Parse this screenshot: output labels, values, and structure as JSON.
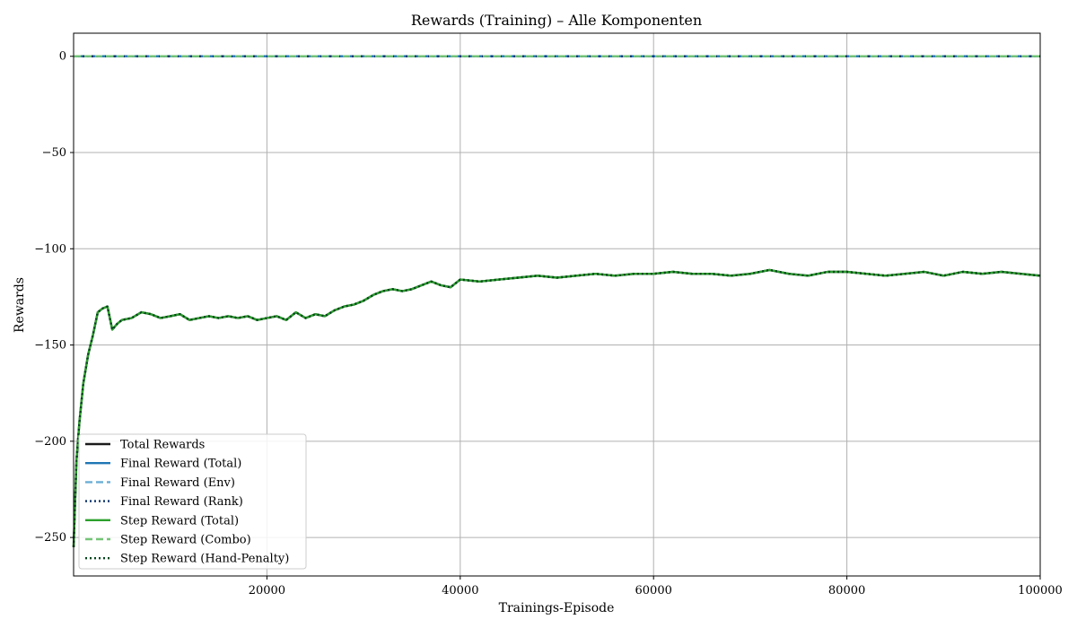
{
  "chart_data": {
    "type": "line",
    "title": "Rewards (Training) – Alle Komponenten",
    "xlabel": "Trainings-Episode",
    "ylabel": "Rewards",
    "xlim": [
      0,
      100000
    ],
    "ylim": [
      -270,
      12
    ],
    "x_ticks": [
      20000,
      40000,
      60000,
      80000,
      100000
    ],
    "x_tick_labels": [
      "20000",
      "40000",
      "60000",
      "80000",
      "100000"
    ],
    "y_ticks": [
      0,
      -50,
      -100,
      -150,
      -200,
      -250
    ],
    "y_tick_labels": [
      "0",
      "−50",
      "−100",
      "−150",
      "−200",
      "−250"
    ],
    "grid": true,
    "legend_position": "lower-left",
    "colors": {
      "grid": "#b0b0b0",
      "axes": "#000000",
      "total": "#1a1a1a",
      "final_total": "#1f77b4",
      "final_env": "#6baed6",
      "final_rank": "#08306b",
      "step_total": "#2ca02c",
      "step_combo": "#74c476",
      "step_hand_penalty": "#00441b"
    },
    "series": [
      {
        "name": "Total Rewards",
        "color": "#1a1a1a",
        "style": "solid",
        "x": [
          0,
          300,
          600,
          1000,
          1500,
          2000,
          2500,
          3000,
          3500,
          4000,
          4500,
          5000,
          6000,
          7000,
          8000,
          9000,
          10000,
          11000,
          12000,
          13000,
          14000,
          15000,
          16000,
          17000,
          18000,
          19000,
          20000,
          21000,
          22000,
          23000,
          24000,
          25000,
          26000,
          27000,
          28000,
          29000,
          30000,
          31000,
          32000,
          33000,
          34000,
          35000,
          36000,
          37000,
          38000,
          39000,
          40000,
          42000,
          44000,
          46000,
          48000,
          50000,
          52000,
          54000,
          56000,
          58000,
          60000,
          62000,
          64000,
          66000,
          68000,
          70000,
          72000,
          74000,
          76000,
          78000,
          80000,
          82000,
          84000,
          86000,
          88000,
          90000,
          92000,
          94000,
          96000,
          98000,
          100000
        ],
        "y": [
          -255,
          -210,
          -190,
          -170,
          -155,
          -145,
          -133,
          -131,
          -130,
          -142,
          -139,
          -137,
          -136,
          -133,
          -134,
          -136,
          -135,
          -134,
          -137,
          -136,
          -135,
          -136,
          -135,
          -136,
          -135,
          -137,
          -136,
          -135,
          -137,
          -133,
          -136,
          -134,
          -135,
          -132,
          -130,
          -129,
          -127,
          -124,
          -122,
          -121,
          -122,
          -121,
          -119,
          -117,
          -119,
          -120,
          -116,
          -117,
          -116,
          -115,
          -114,
          -115,
          -114,
          -113,
          -114,
          -113,
          -113,
          -112,
          -113,
          -113,
          -114,
          -113,
          -111,
          -113,
          -114,
          -112,
          -112,
          -113,
          -114,
          -113,
          -112,
          -114,
          -112,
          -113,
          -112,
          -113,
          -114
        ]
      },
      {
        "name": "Final Reward (Total)",
        "color": "#1f77b4",
        "style": "solid",
        "x": [
          0,
          100000
        ],
        "y": [
          0,
          0
        ]
      },
      {
        "name": "Final Reward (Env)",
        "color": "#6baed6",
        "style": "dashed",
        "x": [
          0,
          100000
        ],
        "y": [
          0,
          0
        ]
      },
      {
        "name": "Final Reward (Rank)",
        "color": "#08306b",
        "style": "dotted",
        "x": [
          0,
          100000
        ],
        "y": [
          0,
          0
        ]
      },
      {
        "name": "Step Reward (Total)",
        "color": "#2ca02c",
        "style": "solid",
        "x": [
          0,
          300,
          600,
          1000,
          1500,
          2000,
          2500,
          3000,
          3500,
          4000,
          4500,
          5000,
          6000,
          7000,
          8000,
          9000,
          10000,
          11000,
          12000,
          13000,
          14000,
          15000,
          16000,
          17000,
          18000,
          19000,
          20000,
          21000,
          22000,
          23000,
          24000,
          25000,
          26000,
          27000,
          28000,
          29000,
          30000,
          31000,
          32000,
          33000,
          34000,
          35000,
          36000,
          37000,
          38000,
          39000,
          40000,
          42000,
          44000,
          46000,
          48000,
          50000,
          52000,
          54000,
          56000,
          58000,
          60000,
          62000,
          64000,
          66000,
          68000,
          70000,
          72000,
          74000,
          76000,
          78000,
          80000,
          82000,
          84000,
          86000,
          88000,
          90000,
          92000,
          94000,
          96000,
          98000,
          100000
        ],
        "y": [
          -255,
          -210,
          -190,
          -170,
          -155,
          -145,
          -133,
          -131,
          -130,
          -142,
          -139,
          -137,
          -136,
          -133,
          -134,
          -136,
          -135,
          -134,
          -137,
          -136,
          -135,
          -136,
          -135,
          -136,
          -135,
          -137,
          -136,
          -135,
          -137,
          -133,
          -136,
          -134,
          -135,
          -132,
          -130,
          -129,
          -127,
          -124,
          -122,
          -121,
          -122,
          -121,
          -119,
          -117,
          -119,
          -120,
          -116,
          -117,
          -116,
          -115,
          -114,
          -115,
          -114,
          -113,
          -114,
          -113,
          -113,
          -112,
          -113,
          -113,
          -114,
          -113,
          -111,
          -113,
          -114,
          -112,
          -112,
          -113,
          -114,
          -113,
          -112,
          -114,
          -112,
          -113,
          -112,
          -113,
          -114
        ]
      },
      {
        "name": "Step Reward (Combo)",
        "color": "#74c476",
        "style": "dashed",
        "x": [
          0,
          100000
        ],
        "y": [
          0,
          0
        ]
      },
      {
        "name": "Step Reward (Hand-Penalty)",
        "color": "#00441b",
        "style": "dotted",
        "x": [
          0,
          300,
          600,
          1000,
          1500,
          2000,
          2500,
          3000,
          3500,
          4000,
          4500,
          5000,
          6000,
          7000,
          8000,
          9000,
          10000,
          11000,
          12000,
          13000,
          14000,
          15000,
          16000,
          17000,
          18000,
          19000,
          20000,
          21000,
          22000,
          23000,
          24000,
          25000,
          26000,
          27000,
          28000,
          29000,
          30000,
          31000,
          32000,
          33000,
          34000,
          35000,
          36000,
          37000,
          38000,
          39000,
          40000,
          42000,
          44000,
          46000,
          48000,
          50000,
          52000,
          54000,
          56000,
          58000,
          60000,
          62000,
          64000,
          66000,
          68000,
          70000,
          72000,
          74000,
          76000,
          78000,
          80000,
          82000,
          84000,
          86000,
          88000,
          90000,
          92000,
          94000,
          96000,
          98000,
          100000
        ],
        "y": [
          -255,
          -210,
          -190,
          -170,
          -155,
          -145,
          -133,
          -131,
          -130,
          -142,
          -139,
          -137,
          -136,
          -133,
          -134,
          -136,
          -135,
          -134,
          -137,
          -136,
          -135,
          -136,
          -135,
          -136,
          -135,
          -137,
          -136,
          -135,
          -137,
          -133,
          -136,
          -134,
          -135,
          -132,
          -130,
          -129,
          -127,
          -124,
          -122,
          -121,
          -122,
          -121,
          -119,
          -117,
          -119,
          -120,
          -116,
          -117,
          -116,
          -115,
          -114,
          -115,
          -114,
          -113,
          -114,
          -113,
          -113,
          -112,
          -113,
          -113,
          -114,
          -113,
          -111,
          -113,
          -114,
          -112,
          -112,
          -113,
          -114,
          -113,
          -112,
          -114,
          -112,
          -113,
          -112,
          -113,
          -114
        ]
      }
    ]
  }
}
